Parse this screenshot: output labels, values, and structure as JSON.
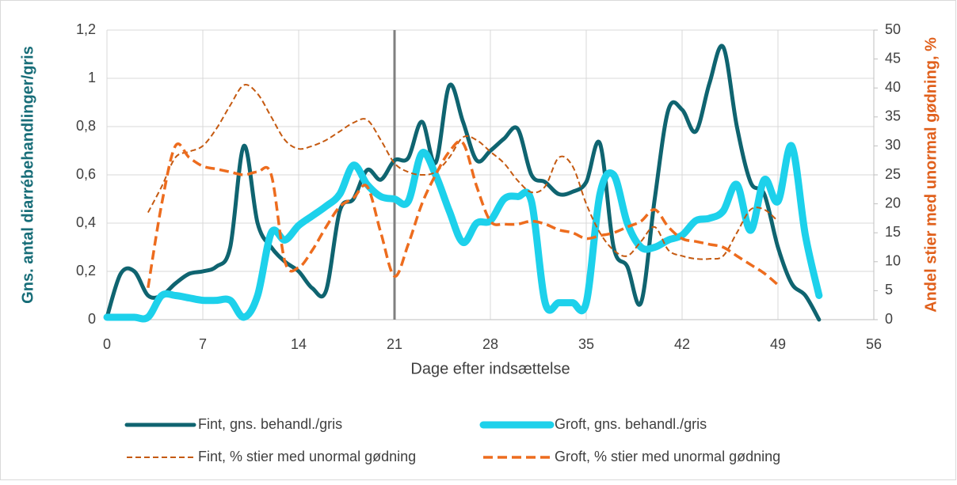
{
  "chart_data": {
    "type": "line",
    "xlabel": "Dage efter indsættelse",
    "ylabel": "Gns. antal diarrébehandlinger/gris",
    "y2label": "Andel stier med unormal gødning, %",
    "x": [
      0,
      1,
      2,
      3,
      4,
      5,
      6,
      7,
      8,
      9,
      10,
      11,
      12,
      13,
      14,
      15,
      16,
      17,
      18,
      19,
      20,
      21,
      22,
      23,
      24,
      25,
      26,
      27,
      28,
      29,
      30,
      31,
      32,
      33,
      34,
      35,
      36,
      37,
      38,
      39,
      40,
      41,
      42,
      43,
      44,
      45,
      46,
      47,
      48,
      49,
      50,
      51,
      52
    ],
    "xlim": [
      0,
      56
    ],
    "xticks": [
      0,
      7,
      14,
      21,
      28,
      35,
      42,
      49,
      56
    ],
    "ylim": [
      0,
      1.2
    ],
    "yticks": [
      0,
      {
        "value": 0.2,
        "label": "0,2"
      },
      {
        "value": 0.4,
        "label": "0,4"
      },
      {
        "value": 0.6,
        "label": "0,6"
      },
      {
        "value": 0.8,
        "label": "0,8"
      },
      1,
      {
        "value": 1.2,
        "label": "1,2"
      }
    ],
    "y2lim": [
      0,
      50
    ],
    "y2ticks": [
      0,
      5,
      10,
      15,
      20,
      25,
      30,
      35,
      40,
      45,
      50
    ],
    "grid": true,
    "vlines": [
      21
    ],
    "vline_color": "#7f7f7f",
    "series": [
      {
        "name": "Fint, gns. behandl./gris",
        "color": "#0f6470",
        "dashed": false,
        "values": [
          0.01,
          0.19,
          0.2,
          0.1,
          0.1,
          0.15,
          0.19,
          0.2,
          0.22,
          0.3,
          0.72,
          0.4,
          0.3,
          0.24,
          0.2,
          0.13,
          0.12,
          0.45,
          0.5,
          0.62,
          0.58,
          0.66,
          0.67,
          0.82,
          0.65,
          0.97,
          0.82,
          0.66,
          0.7,
          0.75,
          0.79,
          0.6,
          0.57,
          0.52,
          0.53,
          0.57,
          0.73,
          0.3,
          0.22,
          0.07,
          0.5,
          0.87,
          0.87,
          0.78,
          0.98,
          1.13,
          0.8,
          0.57,
          0.52,
          0.3,
          0.15,
          0.1,
          0
        ]
      },
      {
        "name": "Groft, gns. behandl./gris",
        "color": "#1dd1eb",
        "dashed": false,
        "values": [
          0.01,
          0.01,
          0.01,
          0.01,
          0.1,
          0.1,
          0.09,
          0.08,
          0.08,
          0.08,
          0.01,
          0.1,
          0.36,
          0.33,
          0.39,
          0.43,
          0.47,
          0.52,
          0.64,
          0.56,
          0.51,
          0.5,
          0.49,
          0.69,
          0.6,
          0.45,
          0.32,
          0.4,
          0.41,
          0.5,
          0.51,
          0.49,
          0.07,
          0.07,
          0.07,
          0.07,
          0.52,
          0.6,
          0.4,
          0.3,
          0.3,
          0.33,
          0.35,
          0.41,
          0.42,
          0.45,
          0.56,
          0.37,
          0.58,
          0.49,
          0.72,
          0.35,
          0.1
        ]
      },
      {
        "name": "Fint, % stier med unormal gødning",
        "color": "#c55a11",
        "dashed": true,
        "axis": "y2",
        "values": [
          null,
          null,
          null,
          18.5,
          23,
          28,
          29,
          30,
          33,
          37,
          40.5,
          39,
          35,
          31,
          29.5,
          30,
          31,
          32.5,
          34,
          34.5,
          31,
          27,
          25.5,
          25,
          25.5,
          28,
          31.5,
          31,
          29,
          27,
          24,
          22,
          23,
          28,
          26.5,
          20,
          15,
          12,
          11,
          13.5,
          16,
          12,
          11,
          10.5,
          10.5,
          11,
          15,
          19,
          19,
          17,
          null,
          null,
          null
        ]
      },
      {
        "name": "Groft, % stier med unormal gødning",
        "color": "#ed6c1e",
        "dashed": true,
        "axis": "y2",
        "values": [
          null,
          null,
          null,
          5.5,
          20,
          30,
          28,
          26.5,
          26,
          25.5,
          25,
          25.5,
          25,
          10,
          9,
          12,
          16,
          19.5,
          21,
          23,
          15,
          7.5,
          13,
          20,
          25,
          29,
          30.5,
          23,
          17,
          16.5,
          16.5,
          17,
          16.5,
          15.5,
          15,
          14,
          14.5,
          15,
          16,
          17,
          19,
          16,
          14,
          13.5,
          13,
          12.5,
          11,
          9.5,
          8,
          6,
          null,
          null,
          null
        ]
      }
    ]
  }
}
